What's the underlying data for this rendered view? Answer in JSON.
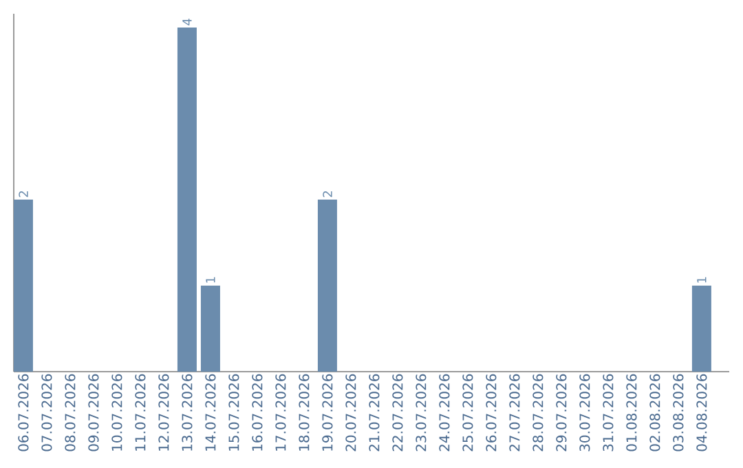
{
  "chart_data": {
    "type": "bar",
    "categories": [
      "06.07.2026",
      "07.07.2026",
      "08.07.2026",
      "09.07.2026",
      "10.07.2026",
      "11.07.2026",
      "12.07.2026",
      "13.07.2026",
      "14.07.2026",
      "15.07.2026",
      "16.07.2026",
      "17.07.2026",
      "18.07.2026",
      "19.07.2026",
      "20.07.2026",
      "21.07.2026",
      "22.07.2026",
      "23.07.2026",
      "24.07.2026",
      "25.07.2026",
      "26.07.2026",
      "27.07.2026",
      "28.07.2026",
      "29.07.2026",
      "30.07.2026",
      "31.07.2026",
      "01.08.2026",
      "02.08.2026",
      "03.08.2026",
      "04.08.2026"
    ],
    "values": [
      2,
      0,
      0,
      0,
      0,
      0,
      0,
      4,
      1,
      0,
      0,
      0,
      0,
      2,
      0,
      0,
      0,
      0,
      0,
      0,
      0,
      0,
      0,
      0,
      0,
      0,
      0,
      0,
      0,
      1
    ],
    "value_labels": [
      "2",
      null,
      null,
      null,
      null,
      null,
      null,
      "4",
      "1",
      null,
      null,
      null,
      null,
      "2",
      null,
      null,
      null,
      null,
      null,
      null,
      null,
      null,
      null,
      null,
      null,
      null,
      null,
      null,
      null,
      "1"
    ],
    "color": "#6b8cad"
  }
}
